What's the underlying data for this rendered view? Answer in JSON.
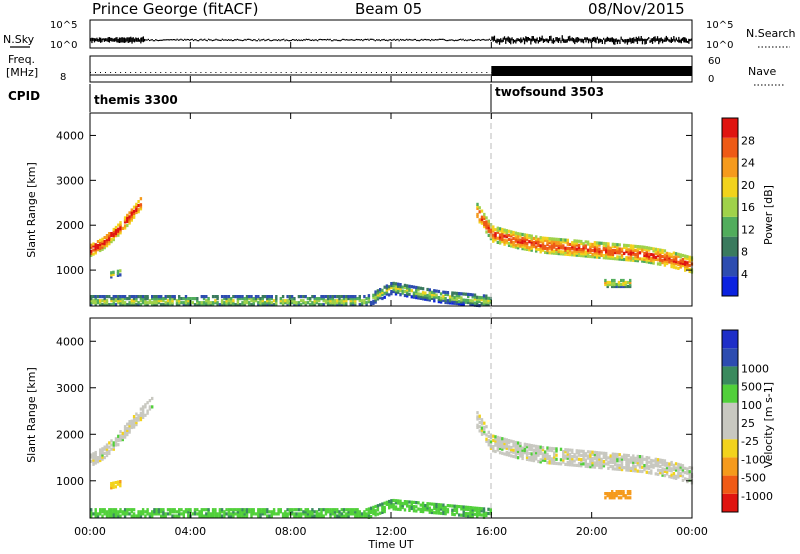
{
  "header": {
    "station": "Prince George (fitACF)",
    "beam": "Beam 05",
    "date": "08/Nov/2015"
  },
  "aux": {
    "nsky_label": "N.Sky",
    "nsky_ticks": [
      "10^5",
      "10^0"
    ],
    "nsearch_label": "N.Search",
    "nsearch_ticks": [
      "10^5",
      "10^0"
    ],
    "freq_label": "Freq.",
    "freq_unit": "[MHz]",
    "freq_tick": "8",
    "nave_label": "Nave",
    "nave_ticks": [
      "60",
      "0"
    ],
    "cpid_label": "CPID",
    "cpid_segments": [
      {
        "name": "themis 3300",
        "start_hour": 0,
        "end_hour": 16
      },
      {
        "name": "twofsound 3503",
        "start_hour": 16,
        "end_hour": 24
      }
    ]
  },
  "colors": {
    "power_scale": [
      "#0b22e0",
      "#2d4cb0",
      "#3a7a5e",
      "#51ad5c",
      "#9fd24a",
      "#f2d31c",
      "#f59a1c",
      "#ee5a16",
      "#e01410"
    ],
    "velocity_scale": [
      "#e01410",
      "#f05a16",
      "#f59a1c",
      "#f2d31c",
      "#c8c8c0",
      "#c8c8c0",
      "#51d03a",
      "#3a8a5e",
      "#2d4cb0",
      "#1f2fc8"
    ]
  },
  "chart_data": [
    {
      "type": "heatmap",
      "name": "power",
      "ylabel": "Slant Range [km]",
      "yticks": [
        "1000",
        "2000",
        "3000",
        "4000"
      ],
      "ylim": [
        200,
        4500
      ],
      "xlim_hours": [
        0,
        24
      ],
      "colorbar_label": "Power [dB]",
      "colorbar_ticks": [
        "4",
        "8",
        "12",
        "16",
        "20",
        "24",
        "28"
      ],
      "colorbar_range": [
        0,
        32
      ],
      "bands": [
        {
          "hours": [
            0.0,
            0.5,
            1.0,
            1.5,
            2.0
          ],
          "ranges_km": [
            1450,
            1600,
            1850,
            2150,
            2500
          ],
          "width_km": 260,
          "power_db": 24
        },
        {
          "hours": [
            0.8,
            1.2
          ],
          "ranges_km": [
            900,
            950
          ],
          "width_km": 120,
          "power_db": 12
        },
        {
          "hours": [
            0.0,
            4.0,
            8.0,
            11.0,
            12.0,
            14.0,
            16.0
          ],
          "ranges_km": [
            300,
            300,
            300,
            300,
            600,
            400,
            300
          ],
          "width_km": 250,
          "power_db": 10
        },
        {
          "hours": [
            15.4,
            16.0,
            17.0,
            18.0,
            19.0,
            20.0,
            21.0,
            22.0,
            23.0,
            24.0
          ],
          "ranges_km": [
            2300,
            1800,
            1650,
            1550,
            1500,
            1450,
            1400,
            1350,
            1250,
            1100
          ],
          "width_km": 320,
          "power_db": 22
        },
        {
          "hours": [
            20.5,
            21.5
          ],
          "ranges_km": [
            700,
            700
          ],
          "width_km": 150,
          "power_db": 14
        }
      ]
    },
    {
      "type": "heatmap",
      "name": "velocity",
      "ylabel": "Slant Range [km]",
      "yticks": [
        "1000",
        "2000",
        "3000",
        "4000"
      ],
      "ylim": [
        200,
        4500
      ],
      "xlabel": "Time UT",
      "xticks": [
        "00:00",
        "04:00",
        "08:00",
        "12:00",
        "16:00",
        "20:00",
        "00:00"
      ],
      "xlim_hours": [
        0,
        24
      ],
      "colorbar_label": "Velocity [m s-1]",
      "colorbar_ticks": [
        "-1000",
        "-500",
        "-100",
        "-25",
        "25",
        "100",
        "500",
        "1000"
      ],
      "bands": [
        {
          "hours": [
            0.0,
            0.5,
            1.0,
            1.5,
            2.0,
            2.5
          ],
          "ranges_km": [
            1450,
            1600,
            1850,
            2150,
            2450,
            2700
          ],
          "width_km": 260,
          "velocity": 0
        },
        {
          "hours": [
            0.8,
            1.2
          ],
          "ranges_km": [
            900,
            950
          ],
          "width_km": 120,
          "velocity": -80
        },
        {
          "hours": [
            0.0,
            4.0,
            8.0,
            11.0,
            12.0,
            14.0,
            16.0
          ],
          "ranges_km": [
            300,
            300,
            300,
            300,
            500,
            400,
            300
          ],
          "width_km": 220,
          "velocity": 80
        },
        {
          "hours": [
            15.4,
            16.0,
            17.0,
            18.0,
            19.0,
            20.0,
            21.0,
            22.0,
            23.0,
            24.0
          ],
          "ranges_km": [
            2300,
            1800,
            1650,
            1550,
            1500,
            1450,
            1400,
            1350,
            1250,
            1100
          ],
          "width_km": 320,
          "velocity": 0
        },
        {
          "hours": [
            20.5,
            21.5
          ],
          "ranges_km": [
            700,
            700
          ],
          "width_km": 150,
          "velocity": -400
        }
      ]
    }
  ]
}
